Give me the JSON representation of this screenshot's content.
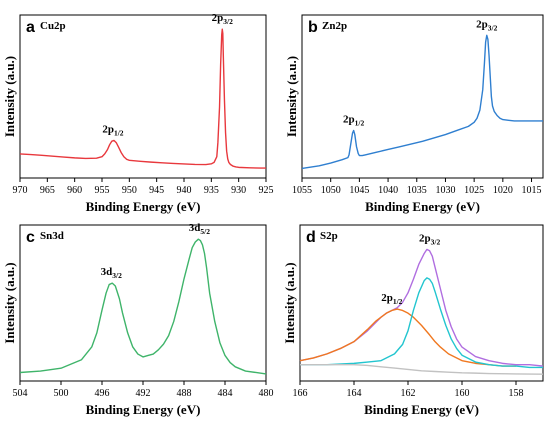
{
  "chart_data": [
    {
      "type": "line",
      "panel": "a",
      "title": "Cu2p",
      "xlabel": "Binding Energy (eV)",
      "ylabel": "Intensity (a.u.)",
      "xlim": [
        970,
        925
      ],
      "xticks": [
        "970",
        "965",
        "960",
        "955",
        "950",
        "945",
        "940",
        "935",
        "930",
        "925"
      ],
      "x_reversed": true,
      "color": "#e8383d",
      "series": [
        {
          "x": [
            970,
            968,
            966,
            964,
            962,
            960,
            958,
            956,
            955,
            954.5,
            954,
            953.6,
            953.2,
            952.8,
            952.4,
            952,
            951.5,
            951,
            950.5,
            950,
            948,
            946,
            944,
            942,
            940,
            938,
            936,
            935,
            934.5,
            934,
            933.8,
            933.5,
            933.3,
            933.1,
            933,
            932.9,
            932.8,
            932.6,
            932.4,
            932.2,
            932,
            931.8,
            931.5,
            931,
            930.5,
            930,
            928,
            926,
            925
          ],
          "y": [
            0.12,
            0.115,
            0.11,
            0.104,
            0.098,
            0.092,
            0.088,
            0.09,
            0.1,
            0.12,
            0.15,
            0.185,
            0.21,
            0.215,
            0.2,
            0.17,
            0.13,
            0.1,
            0.082,
            0.075,
            0.068,
            0.062,
            0.057,
            0.053,
            0.049,
            0.046,
            0.045,
            0.05,
            0.06,
            0.1,
            0.2,
            0.45,
            0.75,
            0.96,
            1.0,
            0.97,
            0.8,
            0.5,
            0.27,
            0.14,
            0.085,
            0.06,
            0.045,
            0.033,
            0.028,
            0.025,
            0.022,
            0.02,
            0.02
          ]
        }
      ],
      "annotations": [
        {
          "main": "2p",
          "sub": "1/2",
          "at": [
            953,
            0.215
          ]
        },
        {
          "main": "2p",
          "sub": "3/2",
          "at": [
            933,
            1.0
          ]
        }
      ]
    },
    {
      "type": "line",
      "panel": "b",
      "title": "Zn2p",
      "xlabel": "Binding Energy (eV)",
      "ylabel": "Intensity (a.u.)",
      "xlim": [
        1055,
        1013
      ],
      "xticks": [
        "1055",
        "1050",
        "1045",
        "1040",
        "1035",
        "1030",
        "1025",
        "1020",
        "1015"
      ],
      "x_reversed": true,
      "color": "#2f7fd0",
      "series": [
        {
          "x": [
            1055,
            1052,
            1050,
            1048,
            1047,
            1046.8,
            1046.5,
            1046.2,
            1046,
            1045.8,
            1045.5,
            1045.2,
            1045,
            1044.5,
            1044,
            1042,
            1040,
            1038,
            1036,
            1034,
            1032,
            1030,
            1028,
            1026,
            1025,
            1024.5,
            1024,
            1023.5,
            1023.2,
            1023,
            1022.8,
            1022.6,
            1022.4,
            1022.2,
            1022,
            1021.8,
            1021.5,
            1021,
            1020.5,
            1020,
            1019,
            1018,
            1016,
            1014,
            1013
          ],
          "y": [
            0.02,
            0.04,
            0.06,
            0.085,
            0.1,
            0.12,
            0.2,
            0.28,
            0.3,
            0.27,
            0.18,
            0.13,
            0.115,
            0.115,
            0.12,
            0.14,
            0.16,
            0.18,
            0.2,
            0.22,
            0.245,
            0.27,
            0.3,
            0.33,
            0.36,
            0.39,
            0.45,
            0.6,
            0.8,
            0.95,
            1.0,
            0.97,
            0.85,
            0.7,
            0.55,
            0.48,
            0.44,
            0.41,
            0.39,
            0.38,
            0.375,
            0.37,
            0.37,
            0.37,
            0.37
          ]
        }
      ],
      "annotations": [
        {
          "main": "2p",
          "sub": "1/2",
          "at": [
            1046,
            0.3
          ]
        },
        {
          "main": "2p",
          "sub": "3/2",
          "at": [
            1022.8,
            1.0
          ]
        }
      ]
    },
    {
      "type": "line",
      "panel": "c",
      "title": "Sn3d",
      "xlabel": "Binding Energy (eV)",
      "ylabel": "Intensity (a.u.)",
      "xlim": [
        504,
        480
      ],
      "xticks": [
        "504",
        "500",
        "496",
        "492",
        "488",
        "484",
        "480"
      ],
      "x_reversed": true,
      "color": "#3fb46a",
      "series": [
        {
          "x": [
            504,
            502,
            500,
            498,
            497,
            496.5,
            496,
            495.6,
            495.3,
            495,
            494.7,
            494.3,
            494,
            493.5,
            493,
            492.5,
            492,
            491.5,
            491,
            490.5,
            490,
            489.5,
            489,
            488.5,
            488,
            487.5,
            487.2,
            486.9,
            486.6,
            486.4,
            486.2,
            486,
            485.8,
            485.5,
            485,
            484.5,
            484,
            483.5,
            483,
            482,
            481,
            480
          ],
          "y": [
            0.06,
            0.07,
            0.09,
            0.15,
            0.24,
            0.34,
            0.5,
            0.62,
            0.68,
            0.69,
            0.67,
            0.58,
            0.48,
            0.34,
            0.24,
            0.19,
            0.17,
            0.18,
            0.19,
            0.22,
            0.26,
            0.32,
            0.42,
            0.56,
            0.72,
            0.86,
            0.94,
            0.98,
            1.0,
            0.99,
            0.96,
            0.9,
            0.8,
            0.62,
            0.42,
            0.27,
            0.18,
            0.13,
            0.1,
            0.07,
            0.06,
            0.05
          ]
        }
      ],
      "annotations": [
        {
          "main": "3d",
          "sub": "3/2",
          "at": [
            495.1,
            0.69
          ]
        },
        {
          "main": "3d",
          "sub": "5/2",
          "at": [
            486.5,
            1.0
          ]
        }
      ]
    },
    {
      "type": "line",
      "panel": "d",
      "title": "S2p",
      "xlabel": "Binding Energy (eV)",
      "ylabel": "Intensity (a.u.)",
      "xlim": [
        166,
        157
      ],
      "xticks": [
        "166",
        "164",
        "162",
        "160",
        "158"
      ],
      "x_reversed": true,
      "series": [
        {
          "color": "#b06ee0",
          "x": [
            166,
            165.5,
            165,
            164.5,
            164,
            163.5,
            163.2,
            163,
            162.8,
            162.6,
            162.4,
            162.2,
            162,
            161.8,
            161.6,
            161.4,
            161.3,
            161.2,
            161.1,
            161,
            160.8,
            160.6,
            160.4,
            160.2,
            160,
            159.5,
            159,
            158.5,
            158,
            157.5,
            157
          ],
          "y": [
            0.05,
            0.07,
            0.1,
            0.14,
            0.19,
            0.27,
            0.33,
            0.37,
            0.4,
            0.42,
            0.44,
            0.48,
            0.55,
            0.65,
            0.76,
            0.84,
            0.87,
            0.86,
            0.82,
            0.74,
            0.58,
            0.42,
            0.3,
            0.21,
            0.15,
            0.08,
            0.05,
            0.03,
            0.02,
            0.02,
            0.01
          ]
        },
        {
          "color": "#f07820",
          "x": [
            166,
            165.5,
            165,
            164.5,
            164,
            163.5,
            163.2,
            163,
            162.8,
            162.6,
            162.4,
            162.2,
            162,
            161.8,
            161.5,
            161.2,
            161,
            160.8,
            160.5,
            160,
            159.5,
            159,
            158.5,
            158
          ],
          "y": [
            0.05,
            0.07,
            0.1,
            0.14,
            0.19,
            0.28,
            0.34,
            0.37,
            0.4,
            0.42,
            0.43,
            0.42,
            0.4,
            0.37,
            0.31,
            0.24,
            0.19,
            0.15,
            0.1,
            0.05,
            0.03,
            0.02,
            0.01,
            0.01
          ]
        },
        {
          "color": "#22c5cf",
          "x": [
            166,
            165,
            164,
            163.5,
            163,
            162.5,
            162.2,
            162,
            161.8,
            161.6,
            161.4,
            161.3,
            161.2,
            161.1,
            161,
            160.8,
            160.6,
            160.4,
            160.2,
            160,
            159.5,
            159,
            158.5,
            158,
            157.5,
            157
          ],
          "y": [
            0.02,
            0.02,
            0.03,
            0.04,
            0.05,
            0.1,
            0.17,
            0.27,
            0.42,
            0.55,
            0.64,
            0.66,
            0.65,
            0.62,
            0.56,
            0.43,
            0.31,
            0.21,
            0.14,
            0.09,
            0.04,
            0.02,
            0.01,
            0.01,
            0.0,
            0.0
          ]
        },
        {
          "color": "#c2c2c2",
          "x": [
            166,
            165,
            164,
            163.5,
            163,
            162.5,
            162,
            161.5,
            161,
            160.5,
            160,
            159.5,
            159,
            158,
            157
          ],
          "y": [
            0.02,
            0.02,
            0.02,
            0.015,
            0.005,
            -0.005,
            -0.015,
            -0.025,
            -0.03,
            -0.035,
            -0.04,
            -0.042,
            -0.045,
            -0.048,
            -0.05
          ]
        }
      ],
      "annotations": [
        {
          "main": "2p",
          "sub": "1/2",
          "at": [
            162.6,
            0.43
          ]
        },
        {
          "main": "2p",
          "sub": "3/2",
          "at": [
            161.2,
            0.87
          ]
        }
      ]
    }
  ]
}
